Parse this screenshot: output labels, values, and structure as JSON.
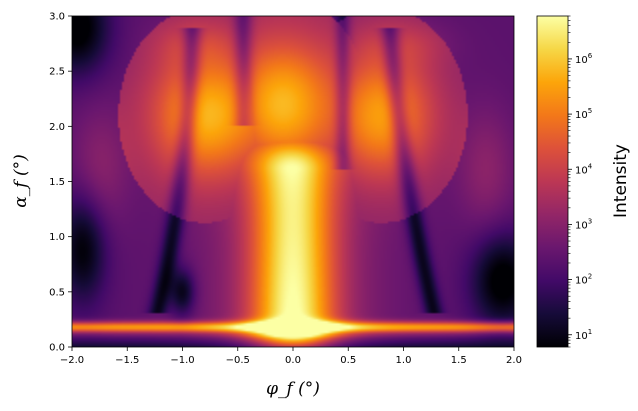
{
  "chart_data": {
    "type": "heatmap",
    "title": "",
    "xlabel": "φ_f (°)",
    "ylabel": "α_f (°)",
    "xlim": [
      -2.0,
      2.0
    ],
    "ylim": [
      0.0,
      3.0
    ],
    "x_ticks": [
      "−2.0",
      "−1.5",
      "−1.0",
      "−0.5",
      "0.0",
      "0.5",
      "1.0",
      "1.5",
      "2.0"
    ],
    "y_ticks": [
      "0.0",
      "0.5",
      "1.0",
      "1.5",
      "2.0",
      "2.5",
      "3.0"
    ],
    "colorbar": {
      "label": "Intensity",
      "scale": "log",
      "colormap": "inferno",
      "range": [
        6,
        6000000
      ],
      "ticks": [
        {
          "base": "10",
          "exp": "1",
          "value": 10
        },
        {
          "base": "10",
          "exp": "2",
          "value": 100
        },
        {
          "base": "10",
          "exp": "3",
          "value": 1000
        },
        {
          "base": "10",
          "exp": "4",
          "value": 10000
        },
        {
          "base": "10",
          "exp": "5",
          "value": 100000
        },
        {
          "base": "10",
          "exp": "6",
          "value": 1000000
        }
      ]
    },
    "features": {
      "yoneda_band": {
        "alpha": 0.18,
        "intensity": 300000
      },
      "specular_peak": {
        "phi": 0.0,
        "alpha": 0.18,
        "intensity": 5000000
      },
      "central_rod": {
        "phi": 0.0,
        "alpha_top": 1.6,
        "intensity": 1000000
      },
      "side_lobes": [
        {
          "phi": -0.8,
          "alpha": 2.1,
          "intensity": 30000
        },
        {
          "phi": -0.1,
          "alpha": 2.2,
          "intensity": 40000
        },
        {
          "phi": 0.8,
          "alpha": 2.1,
          "intensity": 20000
        }
      ]
    }
  }
}
